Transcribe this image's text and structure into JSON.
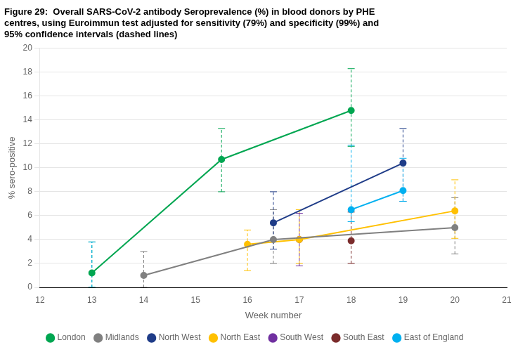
{
  "chart_data": {
    "type": "line",
    "title": [
      "Figure 29:  Overall SARS-CoV-2 antibody Seroprevalence (%) in blood donors by PHE",
      "centres, using Euroimmun test adjusted for sensitivity (79%) and specificity (99%) and",
      "95% confidence intervals (dashed lines)"
    ],
    "x_label": "Week number",
    "y_label": "% sero-positive",
    "xlim": [
      12,
      21
    ],
    "ylim": [
      0,
      20
    ],
    "xticks": [
      12,
      13,
      14,
      15,
      16,
      17,
      18,
      19,
      20,
      21
    ],
    "yticks": [
      0,
      2,
      4,
      6,
      8,
      10,
      12,
      14,
      16,
      18,
      20
    ],
    "grid": "y",
    "legend": "bottom",
    "marker": "circle",
    "series": [
      {
        "name": "London",
        "color": "#00A651",
        "x": [
          13,
          15.5,
          18
        ],
        "values": [
          1.2,
          10.7,
          14.8
        ],
        "ci_low": [
          0.0,
          8.0,
          11.8
        ],
        "ci_high": [
          3.8,
          13.3,
          18.3
        ]
      },
      {
        "name": "Midlands",
        "color": "#808080",
        "x": [
          14,
          16.5,
          20
        ],
        "values": [
          1.0,
          4.0,
          5.0
        ],
        "ci_low": [
          0.0,
          2.0,
          2.8
        ],
        "ci_high": [
          3.0,
          6.5,
          7.5
        ]
      },
      {
        "name": "North West",
        "color": "#1F3C88",
        "x": [
          16.5,
          19
        ],
        "values": [
          5.4,
          10.4
        ],
        "ci_low": [
          3.2,
          7.2
        ],
        "ci_high": [
          8.0,
          13.3
        ]
      },
      {
        "name": "North East",
        "color": "#FFC000",
        "x": [
          16,
          17,
          20
        ],
        "values": [
          3.6,
          4.0,
          6.4
        ],
        "ci_low": [
          1.4,
          2.0,
          4.1
        ],
        "ci_high": [
          4.8,
          6.5,
          9.0
        ]
      },
      {
        "name": "South West",
        "color": "#7030A0",
        "x": [
          17
        ],
        "values": [
          4.0
        ],
        "ci_low": [
          1.8
        ],
        "ci_high": [
          6.2
        ]
      },
      {
        "name": "South East",
        "color": "#7B2C2C",
        "x": [
          18
        ],
        "values": [
          3.9
        ],
        "ci_low": [
          2.0
        ],
        "ci_high": [
          6.3
        ]
      },
      {
        "name": "East of England",
        "color": "#00B0F0",
        "x": [
          18,
          19,
          13
        ],
        "values": [
          6.5,
          8.1,
          null
        ],
        "ci_low": [
          5.5,
          7.2,
          0.0
        ],
        "ci_high": [
          11.9,
          10.8,
          3.8
        ]
      }
    ]
  }
}
